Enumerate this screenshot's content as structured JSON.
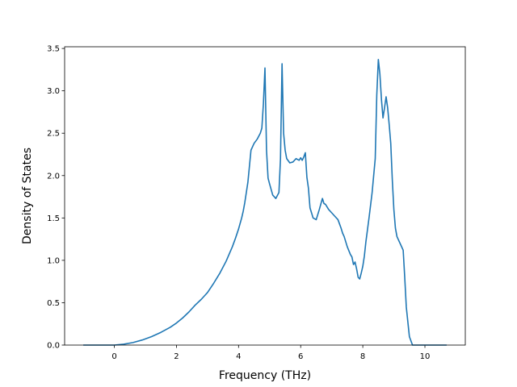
{
  "chart_data": {
    "type": "line",
    "title": "",
    "xlabel": "Frequency (THz)",
    "ylabel": "Density of States",
    "xlim": [
      -1.6,
      11.3
    ],
    "ylim": [
      0.0,
      3.52
    ],
    "xticks": [
      0,
      2,
      4,
      6,
      8,
      10
    ],
    "xtick_labels": [
      "0",
      "2",
      "4",
      "6",
      "8",
      "10"
    ],
    "yticks": [
      0.0,
      0.5,
      1.0,
      1.5,
      2.0,
      2.5,
      3.0,
      3.5
    ],
    "ytick_labels": [
      "0.0",
      "0.5",
      "1.0",
      "1.5",
      "2.0",
      "2.5",
      "3.0",
      "3.5"
    ],
    "grid": false,
    "legend": "none",
    "series": [
      {
        "color": "#1f77b4",
        "x": [
          -1.0,
          -0.5,
          0.0,
          0.3,
          0.6,
          0.9,
          1.2,
          1.5,
          1.8,
          2.0,
          2.2,
          2.4,
          2.6,
          2.8,
          3.0,
          3.2,
          3.4,
          3.6,
          3.8,
          3.9,
          4.0,
          4.1,
          4.15,
          4.2,
          4.3,
          4.4,
          4.5,
          4.6,
          4.7,
          4.75,
          4.8,
          4.85,
          4.9,
          4.95,
          5.0,
          5.1,
          5.2,
          5.3,
          5.35,
          5.4,
          5.45,
          5.5,
          5.55,
          5.65,
          5.75,
          5.85,
          5.95,
          6.0,
          6.05,
          6.1,
          6.15,
          6.2,
          6.25,
          6.3,
          6.4,
          6.5,
          6.6,
          6.7,
          6.75,
          6.8,
          6.9,
          7.0,
          7.1,
          7.2,
          7.3,
          7.35,
          7.4,
          7.5,
          7.6,
          7.65,
          7.7,
          7.75,
          7.8,
          7.85,
          7.9,
          7.95,
          8.0,
          8.05,
          8.1,
          8.2,
          8.3,
          8.4,
          8.45,
          8.5,
          8.55,
          8.6,
          8.65,
          8.7,
          8.75,
          8.8,
          8.85,
          8.9,
          8.95,
          9.0,
          9.05,
          9.1,
          9.2,
          9.3,
          9.35,
          9.4,
          9.5,
          9.6,
          9.65,
          9.7,
          9.75,
          9.8,
          10.0,
          10.7
        ],
        "y": [
          0.0,
          0.0,
          0.0,
          0.01,
          0.03,
          0.06,
          0.1,
          0.15,
          0.21,
          0.26,
          0.32,
          0.39,
          0.47,
          0.54,
          0.62,
          0.73,
          0.85,
          0.99,
          1.16,
          1.26,
          1.37,
          1.5,
          1.58,
          1.68,
          1.92,
          2.3,
          2.38,
          2.43,
          2.5,
          2.56,
          2.85,
          3.27,
          2.3,
          1.97,
          1.9,
          1.77,
          1.73,
          1.8,
          2.2,
          3.32,
          2.5,
          2.3,
          2.2,
          2.15,
          2.16,
          2.2,
          2.18,
          2.21,
          2.18,
          2.22,
          2.27,
          1.98,
          1.85,
          1.62,
          1.5,
          1.48,
          1.6,
          1.73,
          1.67,
          1.66,
          1.6,
          1.56,
          1.52,
          1.48,
          1.38,
          1.32,
          1.28,
          1.16,
          1.07,
          1.04,
          0.95,
          0.98,
          0.9,
          0.8,
          0.78,
          0.85,
          0.93,
          1.05,
          1.22,
          1.5,
          1.8,
          2.2,
          2.95,
          3.37,
          3.2,
          2.9,
          2.68,
          2.8,
          2.93,
          2.8,
          2.6,
          2.38,
          1.95,
          1.6,
          1.38,
          1.28,
          1.2,
          1.12,
          0.8,
          0.45,
          0.1,
          0.0,
          0.0,
          0.0,
          0.0,
          0.0,
          0.0,
          0.0
        ]
      }
    ]
  }
}
